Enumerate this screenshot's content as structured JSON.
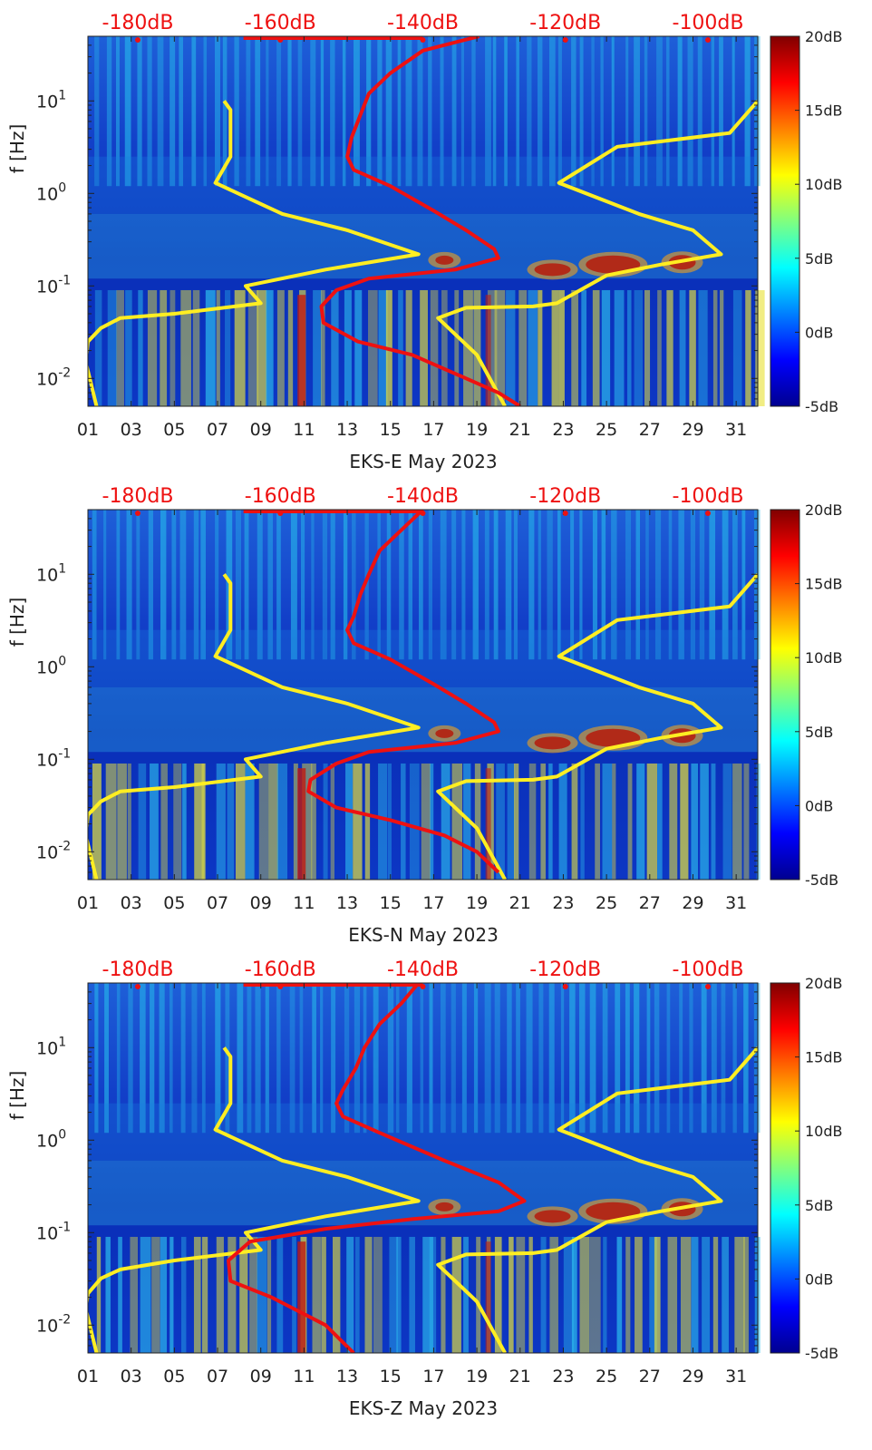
{
  "chart_data": [
    {
      "type": "heatmap",
      "xlabel": "EKS-E May 2023",
      "ylabel": "f [Hz]",
      "x_ticks": [
        "01",
        "03",
        "05",
        "07",
        "09",
        "11",
        "13",
        "15",
        "17",
        "19",
        "21",
        "23",
        "25",
        "27",
        "29",
        "31"
      ],
      "x_range": [
        1,
        32
      ],
      "y_scale": "log",
      "y_range": [
        0.005,
        50
      ],
      "y_ticks": [
        {
          "base": "10",
          "exp": "-2",
          "value": 0.01
        },
        {
          "base": "10",
          "exp": "-1",
          "value": 0.1
        },
        {
          "base": "10",
          "exp": "0",
          "value": 1
        },
        {
          "base": "10",
          "exp": "1",
          "value": 10
        }
      ],
      "colorbar": {
        "range": [
          -5,
          20
        ],
        "labels": [
          "20dB",
          "15dB",
          "10dB",
          "5dB",
          "0dB",
          "-5dB"
        ]
      },
      "top_scale_labels": [
        "-180dB",
        "-160dB",
        "-140dB",
        "-120dB",
        "-100dB"
      ],
      "series": [
        {
          "color": "#ffee22",
          "points": [
            [
              7.3,
              10
            ],
            [
              7.6,
              8
            ],
            [
              7.6,
              2.5
            ],
            [
              6.9,
              1.3
            ],
            [
              10,
              0.6
            ],
            [
              13,
              0.4
            ],
            [
              16.3,
              0.22
            ],
            [
              12,
              0.15
            ],
            [
              8.3,
              0.1
            ],
            [
              9,
              0.065
            ],
            [
              7.8,
              0.06
            ],
            [
              5,
              0.05
            ],
            [
              2.5,
              0.045
            ],
            [
              1.6,
              0.035
            ],
            [
              1.0,
              0.025
            ],
            [
              0.9,
              0.015
            ],
            [
              1.4,
              0.005
            ]
          ]
        },
        {
          "color": "#ffee22",
          "points": [
            [
              32,
              10
            ],
            [
              30.7,
              4.5
            ],
            [
              25.5,
              3.2
            ],
            [
              22.8,
              1.3
            ],
            [
              26.5,
              0.6
            ],
            [
              29,
              0.4
            ],
            [
              30.3,
              0.22
            ],
            [
              27.5,
              0.17
            ],
            [
              25,
              0.13
            ],
            [
              22.7,
              0.065
            ],
            [
              21.6,
              0.06
            ],
            [
              18.5,
              0.058
            ],
            [
              17.2,
              0.045
            ],
            [
              19,
              0.018
            ],
            [
              20.3,
              0.005
            ]
          ]
        },
        {
          "color": "#ee1111",
          "points": [
            [
              19.1,
              50
            ],
            [
              16.5,
              35
            ],
            [
              15,
              20
            ],
            [
              14,
              12
            ],
            [
              13.6,
              7
            ],
            [
              13.2,
              4
            ],
            [
              13.0,
              2.5
            ],
            [
              13.3,
              1.8
            ],
            [
              15,
              1.2
            ],
            [
              17,
              0.65
            ],
            [
              18.5,
              0.4
            ],
            [
              19.8,
              0.25
            ],
            [
              20,
              0.2
            ],
            [
              18,
              0.15
            ],
            [
              14,
              0.12
            ],
            [
              12.5,
              0.09
            ],
            [
              11.8,
              0.06
            ],
            [
              11.9,
              0.04
            ],
            [
              13.5,
              0.025
            ],
            [
              16,
              0.018
            ],
            [
              18.5,
              0.01
            ],
            [
              20,
              0.007
            ],
            [
              21,
              0.005
            ]
          ]
        }
      ]
    },
    {
      "type": "heatmap",
      "xlabel": "EKS-N May 2023",
      "ylabel": "f [Hz]",
      "x_ticks": [
        "01",
        "03",
        "05",
        "07",
        "09",
        "11",
        "13",
        "15",
        "17",
        "19",
        "21",
        "23",
        "25",
        "27",
        "29",
        "31"
      ],
      "x_range": [
        1,
        32
      ],
      "y_scale": "log",
      "y_range": [
        0.005,
        50
      ],
      "y_ticks": [
        {
          "base": "10",
          "exp": "-2",
          "value": 0.01
        },
        {
          "base": "10",
          "exp": "-1",
          "value": 0.1
        },
        {
          "base": "10",
          "exp": "0",
          "value": 1
        },
        {
          "base": "10",
          "exp": "1",
          "value": 10
        }
      ],
      "colorbar": {
        "range": [
          -5,
          20
        ],
        "labels": [
          "20dB",
          "15dB",
          "10dB",
          "5dB",
          "0dB",
          "-5dB"
        ]
      },
      "top_scale_labels": [
        "-180dB",
        "-160dB",
        "-140dB",
        "-120dB",
        "-100dB"
      ],
      "series": [
        {
          "color": "#ffee22",
          "points": [
            [
              7.3,
              10
            ],
            [
              7.6,
              8
            ],
            [
              7.6,
              2.5
            ],
            [
              6.9,
              1.3
            ],
            [
              10,
              0.6
            ],
            [
              13,
              0.4
            ],
            [
              16.3,
              0.22
            ],
            [
              12,
              0.15
            ],
            [
              8.3,
              0.1
            ],
            [
              9,
              0.065
            ],
            [
              7.8,
              0.06
            ],
            [
              5,
              0.05
            ],
            [
              2.5,
              0.045
            ],
            [
              1.6,
              0.035
            ],
            [
              1.0,
              0.025
            ],
            [
              0.9,
              0.015
            ],
            [
              1.4,
              0.005
            ]
          ]
        },
        {
          "color": "#ffee22",
          "points": [
            [
              32,
              10
            ],
            [
              30.7,
              4.5
            ],
            [
              25.5,
              3.2
            ],
            [
              22.8,
              1.3
            ],
            [
              26.5,
              0.6
            ],
            [
              29,
              0.4
            ],
            [
              30.3,
              0.22
            ],
            [
              27.5,
              0.17
            ],
            [
              25,
              0.13
            ],
            [
              22.7,
              0.065
            ],
            [
              21.6,
              0.06
            ],
            [
              18.5,
              0.058
            ],
            [
              17.2,
              0.045
            ],
            [
              19,
              0.018
            ],
            [
              20.3,
              0.005
            ]
          ]
        },
        {
          "color": "#ee1111",
          "points": [
            [
              16.5,
              50
            ],
            [
              15.5,
              30
            ],
            [
              14.5,
              18
            ],
            [
              14,
              10
            ],
            [
              13.6,
              6
            ],
            [
              13.3,
              3.5
            ],
            [
              13.0,
              2.5
            ],
            [
              13.3,
              1.8
            ],
            [
              15,
              1.2
            ],
            [
              17,
              0.65
            ],
            [
              18.5,
              0.4
            ],
            [
              19.8,
              0.25
            ],
            [
              20,
              0.2
            ],
            [
              18,
              0.15
            ],
            [
              14,
              0.12
            ],
            [
              12.5,
              0.09
            ],
            [
              11.3,
              0.06
            ],
            [
              11.2,
              0.045
            ],
            [
              12.5,
              0.03
            ],
            [
              15,
              0.022
            ],
            [
              17.5,
              0.015
            ],
            [
              19,
              0.01
            ],
            [
              20,
              0.006
            ]
          ]
        }
      ]
    },
    {
      "type": "heatmap",
      "xlabel": "EKS-Z May 2023",
      "ylabel": "f [Hz]",
      "x_ticks": [
        "01",
        "03",
        "05",
        "07",
        "09",
        "11",
        "13",
        "15",
        "17",
        "19",
        "21",
        "23",
        "25",
        "27",
        "29",
        "31"
      ],
      "x_range": [
        1,
        32
      ],
      "y_scale": "log",
      "y_range": [
        0.005,
        50
      ],
      "y_ticks": [
        {
          "base": "10",
          "exp": "-2",
          "value": 0.01
        },
        {
          "base": "10",
          "exp": "-1",
          "value": 0.1
        },
        {
          "base": "10",
          "exp": "0",
          "value": 1
        },
        {
          "base": "10",
          "exp": "1",
          "value": 10
        }
      ],
      "colorbar": {
        "range": [
          -5,
          20
        ],
        "labels": [
          "20dB",
          "15dB",
          "10dB",
          "5dB",
          "0dB",
          "-5dB"
        ]
      },
      "top_scale_labels": [
        "-180dB",
        "-160dB",
        "-140dB",
        "-120dB",
        "-100dB"
      ],
      "series": [
        {
          "color": "#ffee22",
          "points": [
            [
              7.3,
              10
            ],
            [
              7.6,
              8
            ],
            [
              7.6,
              2.5
            ],
            [
              6.9,
              1.3
            ],
            [
              10,
              0.6
            ],
            [
              13,
              0.4
            ],
            [
              16.3,
              0.22
            ],
            [
              12,
              0.15
            ],
            [
              8.3,
              0.1
            ],
            [
              9,
              0.065
            ],
            [
              7.8,
              0.06
            ],
            [
              5,
              0.05
            ],
            [
              2.5,
              0.04
            ],
            [
              1.6,
              0.032
            ],
            [
              1.0,
              0.022
            ],
            [
              0.9,
              0.015
            ],
            [
              1.4,
              0.005
            ]
          ]
        },
        {
          "color": "#ffee22",
          "points": [
            [
              32,
              10
            ],
            [
              30.7,
              4.5
            ],
            [
              25.5,
              3.2
            ],
            [
              22.8,
              1.3
            ],
            [
              26.5,
              0.6
            ],
            [
              29,
              0.4
            ],
            [
              30.3,
              0.22
            ],
            [
              27.5,
              0.17
            ],
            [
              25,
              0.13
            ],
            [
              22.7,
              0.065
            ],
            [
              21.6,
              0.06
            ],
            [
              18.5,
              0.058
            ],
            [
              17.2,
              0.045
            ],
            [
              19,
              0.018
            ],
            [
              20.3,
              0.005
            ]
          ]
        },
        {
          "color": "#ee1111",
          "points": [
            [
              16.3,
              50
            ],
            [
              15.5,
              30
            ],
            [
              14.5,
              18
            ],
            [
              13.8,
              10
            ],
            [
              13.4,
              6
            ],
            [
              12.8,
              3.5
            ],
            [
              12.5,
              2.5
            ],
            [
              12.8,
              1.8
            ],
            [
              14.5,
              1.2
            ],
            [
              17.5,
              0.6
            ],
            [
              20,
              0.35
            ],
            [
              21.2,
              0.22
            ],
            [
              20,
              0.17
            ],
            [
              16,
              0.14
            ],
            [
              12,
              0.11
            ],
            [
              8.5,
              0.08
            ],
            [
              7.5,
              0.05
            ],
            [
              7.6,
              0.03
            ],
            [
              9.5,
              0.02
            ],
            [
              12,
              0.01
            ],
            [
              13.3,
              0.005
            ]
          ]
        }
      ]
    }
  ]
}
